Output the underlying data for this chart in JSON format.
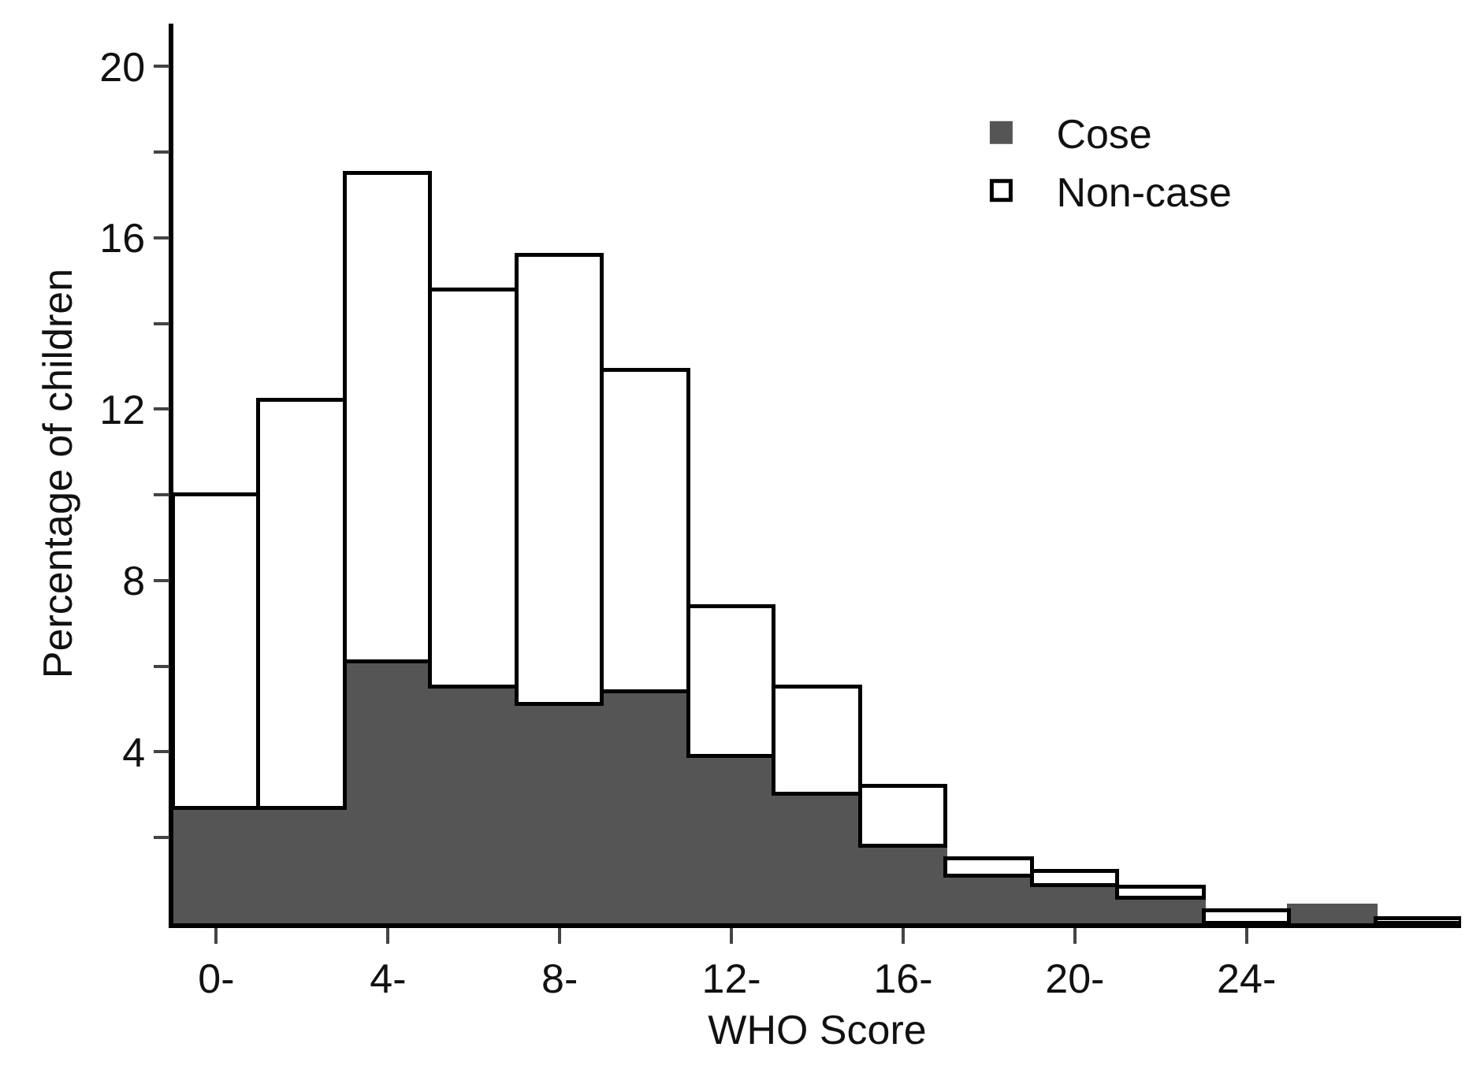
{
  "chart_data": {
    "type": "bar",
    "xlabel": "WHO Score",
    "ylabel": "Percentage of children",
    "categories": [
      "0-",
      null,
      "4-",
      null,
      "8-",
      null,
      "12-",
      null,
      "16-",
      null,
      "20-",
      null,
      "24-",
      null,
      null
    ],
    "series": [
      {
        "name": "Cose",
        "color": "#555555",
        "values": [
          2.7,
          2.7,
          6.1,
          5.5,
          5.1,
          5.4,
          3.9,
          3.0,
          1.8,
          1.1,
          0.9,
          0.6,
          null,
          0.4,
          null
        ]
      },
      {
        "name": "Non-case",
        "color": "#ffffff",
        "values": [
          7.3,
          9.5,
          11.4,
          9.3,
          10.5,
          7.5,
          3.5,
          2.5,
          1.4,
          0.4,
          0.3,
          0.25,
          0.3,
          null,
          0.1
        ]
      }
    ],
    "ylim": [
      0,
      21
    ],
    "yticks": [
      {
        "value": 2,
        "label": null
      },
      4,
      {
        "value": 6,
        "label": null
      },
      8,
      {
        "value": 10,
        "label": null
      },
      12,
      {
        "value": 14,
        "label": null
      },
      16,
      {
        "value": 18,
        "label": null
      },
      20
    ],
    "stacked": true,
    "grid": false,
    "legend": "top right"
  }
}
